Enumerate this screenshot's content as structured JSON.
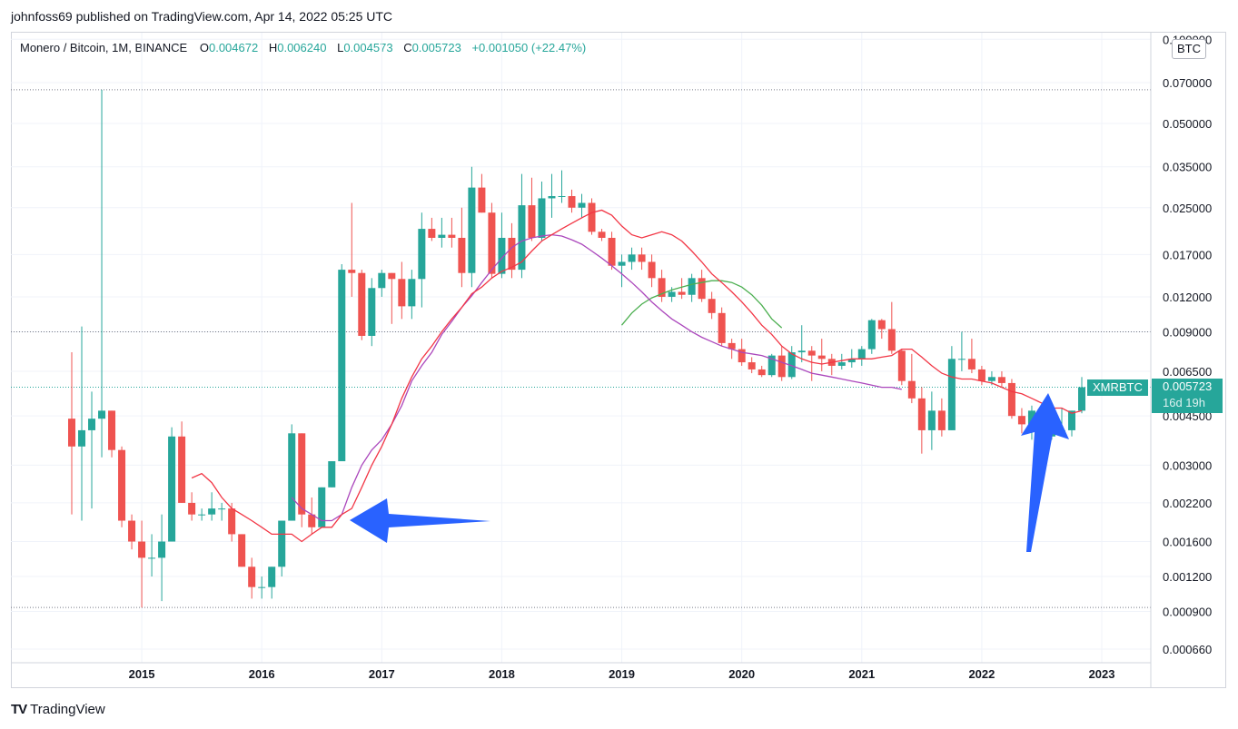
{
  "publisher_line": "johnfoss69 published on TradingView.com, Apr 14, 2022 05:25 UTC",
  "legend": {
    "symbol": "Monero / Bitcoin, 1M, BINANCE",
    "open_label": "O",
    "open": "0.004672",
    "high_label": "H",
    "high": "0.006240",
    "low_label": "L",
    "low": "0.004573",
    "close_label": "C",
    "close": "0.005723",
    "change": "+0.001050 (+22.47%)"
  },
  "unit_badge": "BTC",
  "price_tag": {
    "ticker": "XMRBTC",
    "price": "0.005723",
    "countdown": "16d 19h"
  },
  "brand": {
    "logo": "TV",
    "name": "TradingView"
  },
  "colors": {
    "up": "#26a69a",
    "down": "#ef5350",
    "ma_fast": "#f23645",
    "ma_mid": "#ab47bc",
    "ma_slow": "#4caf50",
    "arrow": "#2962ff",
    "dotted": "#787b86"
  },
  "chart_data": {
    "type": "candlestick",
    "scale": "log",
    "ylim": [
      0.00062,
      0.1
    ],
    "y_ticks": [
      "0.100000",
      "0.070000",
      "0.050000",
      "0.035000",
      "0.025000",
      "0.017000",
      "0.012000",
      "0.009000",
      "0.006500",
      "0.004500",
      "0.003000",
      "0.002200",
      "0.001600",
      "0.001200",
      "0.000900",
      "0.000660"
    ],
    "y_tick_values": [
      0.1,
      0.07,
      0.05,
      0.035,
      0.025,
      0.017,
      0.012,
      0.009,
      0.0065,
      0.0045,
      0.003,
      0.0022,
      0.0016,
      0.0012,
      0.0009,
      0.00066
    ],
    "x_ticks": [
      "2015",
      "2016",
      "2017",
      "2018",
      "2019",
      "2020",
      "2021",
      "2022",
      "2023"
    ],
    "start": "2014-06",
    "horizontal_levels": [
      0.066,
      0.009,
      0.0057,
      0.00093
    ],
    "candles": [
      [
        0.0044,
        0.0076,
        0.002,
        0.0035
      ],
      [
        0.0035,
        0.0094,
        0.0019,
        0.004
      ],
      [
        0.004,
        0.0055,
        0.0021,
        0.0044
      ],
      [
        0.0044,
        0.066,
        0.0032,
        0.0047
      ],
      [
        0.0047,
        0.0047,
        0.0032,
        0.0034
      ],
      [
        0.0034,
        0.0035,
        0.0018,
        0.0019
      ],
      [
        0.0019,
        0.002,
        0.0015,
        0.0016
      ],
      [
        0.0016,
        0.0019,
        0.00093,
        0.0014
      ],
      [
        0.0014,
        0.0017,
        0.0012,
        0.0014
      ],
      [
        0.0014,
        0.002,
        0.00098,
        0.0016
      ],
      [
        0.0016,
        0.0041,
        0.0016,
        0.0038
      ],
      [
        0.0038,
        0.0043,
        0.0022,
        0.0022
      ],
      [
        0.0022,
        0.0024,
        0.0019,
        0.002
      ],
      [
        0.002,
        0.0021,
        0.0019,
        0.002
      ],
      [
        0.002,
        0.0024,
        0.0019,
        0.0021
      ],
      [
        0.0021,
        0.0022,
        0.0019,
        0.0021
      ],
      [
        0.0021,
        0.0022,
        0.0016,
        0.0017
      ],
      [
        0.0017,
        0.0017,
        0.0013,
        0.0013
      ],
      [
        0.0013,
        0.0014,
        0.001,
        0.0011
      ],
      [
        0.0011,
        0.0012,
        0.001,
        0.0011
      ],
      [
        0.0011,
        0.0013,
        0.001,
        0.0013
      ],
      [
        0.0013,
        0.0019,
        0.0012,
        0.0019
      ],
      [
        0.0019,
        0.0042,
        0.0019,
        0.0039
      ],
      [
        0.0039,
        0.0039,
        0.0018,
        0.002
      ],
      [
        0.002,
        0.0023,
        0.0017,
        0.0018
      ],
      [
        0.0018,
        0.0025,
        0.0018,
        0.0025
      ],
      [
        0.0025,
        0.0031,
        0.0025,
        0.0031
      ],
      [
        0.0031,
        0.0157,
        0.0031,
        0.015
      ],
      [
        0.015,
        0.026,
        0.012,
        0.0146
      ],
      [
        0.0146,
        0.015,
        0.0084,
        0.0087
      ],
      [
        0.0087,
        0.014,
        0.008,
        0.0129
      ],
      [
        0.0129,
        0.015,
        0.012,
        0.0146
      ],
      [
        0.0146,
        0.0146,
        0.0096,
        0.0139
      ],
      [
        0.0139,
        0.016,
        0.01,
        0.0111
      ],
      [
        0.0111,
        0.015,
        0.01,
        0.0139
      ],
      [
        0.0139,
        0.024,
        0.011,
        0.021
      ],
      [
        0.021,
        0.023,
        0.019,
        0.0195
      ],
      [
        0.0195,
        0.023,
        0.018,
        0.02
      ],
      [
        0.02,
        0.023,
        0.018,
        0.0195
      ],
      [
        0.0195,
        0.025,
        0.013,
        0.0146
      ],
      [
        0.0146,
        0.035,
        0.013,
        0.0295
      ],
      [
        0.0295,
        0.033,
        0.024,
        0.024
      ],
      [
        0.024,
        0.026,
        0.014,
        0.0145
      ],
      [
        0.0145,
        0.024,
        0.014,
        0.0195
      ],
      [
        0.0195,
        0.022,
        0.014,
        0.015
      ],
      [
        0.015,
        0.033,
        0.014,
        0.0255
      ],
      [
        0.0255,
        0.032,
        0.019,
        0.0195
      ],
      [
        0.0195,
        0.031,
        0.019,
        0.027
      ],
      [
        0.027,
        0.033,
        0.023,
        0.0275
      ],
      [
        0.0275,
        0.034,
        0.026,
        0.0275
      ],
      [
        0.0275,
        0.029,
        0.024,
        0.025
      ],
      [
        0.025,
        0.028,
        0.023,
        0.026
      ],
      [
        0.026,
        0.027,
        0.02,
        0.0205
      ],
      [
        0.0205,
        0.021,
        0.019,
        0.0195
      ],
      [
        0.0195,
        0.0205,
        0.015,
        0.0155
      ],
      [
        0.0155,
        0.017,
        0.013,
        0.016
      ],
      [
        0.016,
        0.018,
        0.015,
        0.017
      ],
      [
        0.017,
        0.018,
        0.015,
        0.016
      ],
      [
        0.016,
        0.017,
        0.013,
        0.014
      ],
      [
        0.014,
        0.015,
        0.0115,
        0.012
      ],
      [
        0.012,
        0.013,
        0.0115,
        0.0125
      ],
      [
        0.0125,
        0.014,
        0.0118,
        0.0122
      ],
      [
        0.0122,
        0.0145,
        0.0115,
        0.014
      ],
      [
        0.014,
        0.015,
        0.0115,
        0.0118
      ],
      [
        0.0118,
        0.0125,
        0.01,
        0.0105
      ],
      [
        0.0105,
        0.011,
        0.008,
        0.0082
      ],
      [
        0.0082,
        0.0085,
        0.0072,
        0.0078
      ],
      [
        0.0078,
        0.0085,
        0.0068,
        0.007
      ],
      [
        0.007,
        0.0073,
        0.0064,
        0.0066
      ],
      [
        0.0066,
        0.0068,
        0.0062,
        0.0063
      ],
      [
        0.0063,
        0.0075,
        0.0062,
        0.0074
      ],
      [
        0.0074,
        0.008,
        0.006,
        0.0062
      ],
      [
        0.0062,
        0.008,
        0.0061,
        0.0076
      ],
      [
        0.0076,
        0.0095,
        0.007,
        0.0077
      ],
      [
        0.0077,
        0.008,
        0.006,
        0.0074
      ],
      [
        0.0074,
        0.0085,
        0.0065,
        0.0072
      ],
      [
        0.0072,
        0.0075,
        0.0063,
        0.0068
      ],
      [
        0.0068,
        0.0075,
        0.0066,
        0.007
      ],
      [
        0.007,
        0.0078,
        0.0067,
        0.0072
      ],
      [
        0.0072,
        0.008,
        0.0068,
        0.0078
      ],
      [
        0.0078,
        0.01,
        0.0075,
        0.0099
      ],
      [
        0.0099,
        0.01,
        0.0085,
        0.0092
      ],
      [
        0.0092,
        0.0115,
        0.0075,
        0.0077
      ],
      [
        0.0077,
        0.0078,
        0.0058,
        0.006
      ],
      [
        0.006,
        0.0075,
        0.005,
        0.0052
      ],
      [
        0.0052,
        0.0057,
        0.0033,
        0.004
      ],
      [
        0.004,
        0.0055,
        0.0034,
        0.0047
      ],
      [
        0.0047,
        0.0052,
        0.0038,
        0.004
      ],
      [
        0.004,
        0.008,
        0.004,
        0.0072
      ],
      [
        0.0072,
        0.009,
        0.0065,
        0.0072
      ],
      [
        0.0072,
        0.0085,
        0.0064,
        0.0066
      ],
      [
        0.0066,
        0.0068,
        0.0058,
        0.006
      ],
      [
        0.006,
        0.0065,
        0.0058,
        0.0062
      ],
      [
        0.0062,
        0.0065,
        0.0057,
        0.0059
      ],
      [
        0.0059,
        0.0061,
        0.0044,
        0.0045
      ],
      [
        0.0045,
        0.0048,
        0.0039,
        0.0042
      ],
      [
        0.0042,
        0.0049,
        0.0037,
        0.0047
      ],
      [
        0.0047,
        0.0049,
        0.0038,
        0.0038
      ],
      [
        0.0038,
        0.004,
        0.0037,
        0.0039
      ],
      [
        0.0039,
        0.0048,
        0.0038,
        0.004
      ],
      [
        0.004,
        0.0047,
        0.0038,
        0.0047
      ],
      [
        0.0047,
        0.0062,
        0.0046,
        0.0057
      ]
    ],
    "ma_fast": {
      "start_index": 12,
      "values": [
        0.0027,
        0.0028,
        0.0026,
        0.0023,
        0.0021,
        0.002,
        0.0019,
        0.0018,
        0.0017,
        0.0017,
        0.0017,
        0.0016,
        0.0017,
        0.0018,
        0.0018,
        0.002,
        0.0021,
        0.0025,
        0.003,
        0.0035,
        0.0042,
        0.0052,
        0.0062,
        0.0072,
        0.008,
        0.009,
        0.01,
        0.011,
        0.0123,
        0.013,
        0.014,
        0.0148,
        0.0153,
        0.016,
        0.0175,
        0.019,
        0.02,
        0.021,
        0.022,
        0.023,
        0.024,
        0.0245,
        0.0235,
        0.0215,
        0.02,
        0.0195,
        0.02,
        0.0205,
        0.02,
        0.019,
        0.0175,
        0.016,
        0.0145,
        0.0135,
        0.0125,
        0.0115,
        0.0105,
        0.0095,
        0.0088,
        0.008,
        0.0075,
        0.0072,
        0.007,
        0.0069,
        0.007,
        0.0071,
        0.0072,
        0.0072,
        0.0072,
        0.0073,
        0.0074,
        0.0078,
        0.0078,
        0.0073,
        0.0068,
        0.0064,
        0.0062,
        0.0061,
        0.0061,
        0.006,
        0.0059,
        0.0057,
        0.0055,
        0.0054,
        0.0052,
        0.005,
        0.0048,
        0.0048,
        0.0046,
        0.0047
      ]
    },
    "ma_mid": {
      "start_index": 22,
      "values": [
        0.0023,
        0.0021,
        0.002,
        0.0019,
        0.0019,
        0.002,
        0.0025,
        0.003,
        0.0034,
        0.0037,
        0.0042,
        0.0049,
        0.006,
        0.0068,
        0.0076,
        0.0088,
        0.0098,
        0.011,
        0.0121,
        0.0135,
        0.015,
        0.0165,
        0.018,
        0.019,
        0.0195,
        0.0198,
        0.02,
        0.0198,
        0.0192,
        0.0185,
        0.0175,
        0.0165,
        0.0155,
        0.0145,
        0.0135,
        0.0125,
        0.0115,
        0.0107,
        0.01,
        0.0095,
        0.009,
        0.0086,
        0.0083,
        0.008,
        0.0078,
        0.0076,
        0.0075,
        0.0074,
        0.0072,
        0.007,
        0.0068,
        0.0066,
        0.0064,
        0.0063,
        0.0062,
        0.0061,
        0.006,
        0.0059,
        0.0058,
        0.0057,
        0.0057,
        0.0056
      ]
    },
    "ma_slow": {
      "start_index": 55,
      "values": [
        0.0095,
        0.0105,
        0.0113,
        0.0119,
        0.0123,
        0.0127,
        0.013,
        0.0133,
        0.0135,
        0.0137,
        0.0137,
        0.0135,
        0.013,
        0.0122,
        0.0112,
        0.01,
        0.0093
      ]
    },
    "annotations": [
      {
        "type": "arrow",
        "direction": "left",
        "points_to": "2016-08"
      },
      {
        "type": "arrow",
        "direction": "up",
        "points_to": "2022-04"
      }
    ]
  }
}
